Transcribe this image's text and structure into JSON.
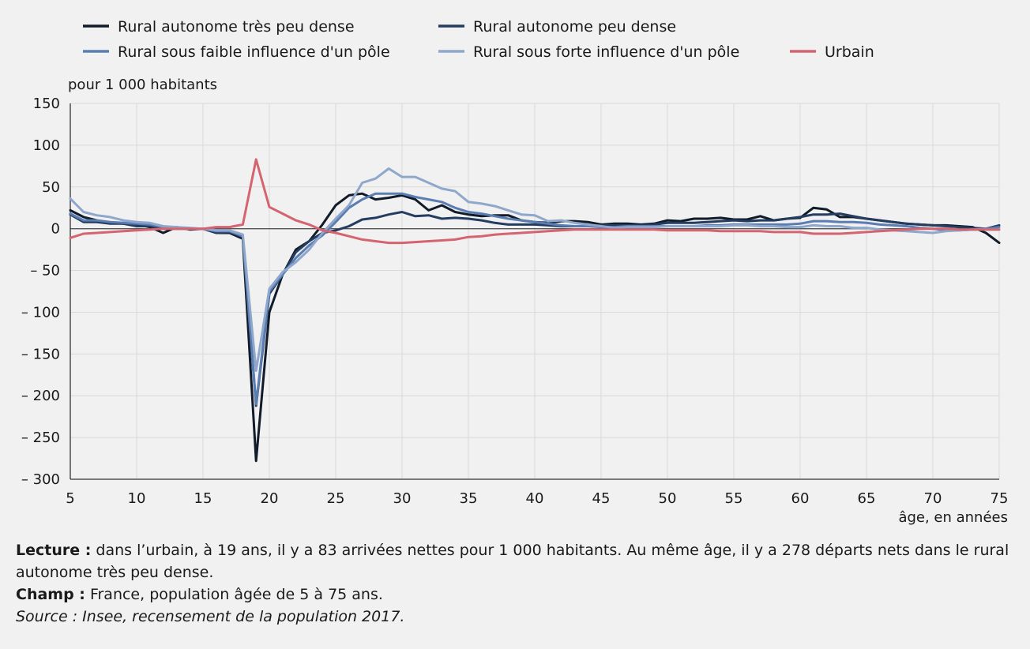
{
  "chart_data": {
    "type": "line",
    "ylabel": "pour 1 000 habitants",
    "xlabel": "âge, en années",
    "xlim": [
      5,
      75
    ],
    "ylim": [
      -300,
      150
    ],
    "x_ticks": [
      5,
      10,
      15,
      20,
      25,
      30,
      35,
      40,
      45,
      50,
      55,
      60,
      65,
      70,
      75
    ],
    "y_ticks": [
      {
        "value": 150,
        "label": "150"
      },
      {
        "value": 100,
        "label": "100"
      },
      {
        "value": 50,
        "label": "50"
      },
      {
        "value": 0,
        "label": "0"
      },
      {
        "value": -50,
        "label": "– 50"
      },
      {
        "value": -100,
        "label": "– 100"
      },
      {
        "value": -150,
        "label": "– 150"
      },
      {
        "value": -200,
        "label": "– 200"
      },
      {
        "value": -250,
        "label": "– 250"
      },
      {
        "value": -300,
        "label": "– 300"
      }
    ],
    "grid": true,
    "legend_position": "top",
    "x": [
      5,
      6,
      7,
      8,
      9,
      10,
      11,
      12,
      13,
      14,
      15,
      16,
      17,
      18,
      19,
      20,
      21,
      22,
      23,
      24,
      25,
      26,
      27,
      28,
      29,
      30,
      31,
      32,
      33,
      34,
      35,
      36,
      37,
      38,
      39,
      40,
      41,
      42,
      43,
      44,
      45,
      46,
      47,
      48,
      49,
      50,
      51,
      52,
      53,
      54,
      55,
      56,
      57,
      58,
      59,
      60,
      61,
      62,
      63,
      64,
      65,
      66,
      67,
      68,
      69,
      70,
      71,
      72,
      73,
      74,
      75
    ],
    "series": [
      {
        "name": "Rural autonome très  peu dense",
        "color": "#111b29",
        "values": [
          22,
          14,
          10,
          7,
          6,
          5,
          2,
          -5,
          2,
          -1,
          0,
          -5,
          -5,
          -12,
          -278,
          -100,
          -55,
          -25,
          -15,
          5,
          28,
          40,
          42,
          35,
          37,
          40,
          35,
          22,
          28,
          20,
          17,
          15,
          16,
          16,
          10,
          8,
          7,
          9,
          9,
          8,
          5,
          6,
          6,
          5,
          6,
          10,
          9,
          12,
          12,
          13,
          11,
          11,
          15,
          10,
          12,
          13,
          25,
          23,
          14,
          14,
          12,
          10,
          8,
          6,
          5,
          4,
          4,
          3,
          2,
          -5,
          -17
        ]
      },
      {
        "name": "Rural autonome peu dense",
        "color": "#253c61",
        "values": [
          17,
          8,
          8,
          6,
          6,
          3,
          3,
          0,
          0,
          0,
          0,
          -5,
          -4,
          -10,
          -212,
          -78,
          -55,
          -28,
          -15,
          -5,
          -2,
          3,
          11,
          13,
          17,
          20,
          15,
          16,
          12,
          13,
          12,
          10,
          7,
          5,
          5,
          5,
          4,
          3,
          3,
          3,
          4,
          4,
          4,
          4,
          5,
          7,
          7,
          7,
          8,
          9,
          10,
          9,
          10,
          10,
          12,
          14,
          17,
          17,
          18,
          15,
          12,
          10,
          8,
          6,
          5,
          4,
          3,
          2,
          1,
          0,
          4
        ]
      },
      {
        "name": "Rural sous faible influence d'un pôle",
        "color": "#5a7db2",
        "values": [
          18,
          10,
          10,
          8,
          7,
          6,
          5,
          2,
          1,
          0,
          0,
          -3,
          -3,
          -9,
          -210,
          -75,
          -55,
          -35,
          -20,
          -8,
          8,
          25,
          35,
          42,
          42,
          42,
          38,
          35,
          32,
          25,
          20,
          18,
          15,
          12,
          10,
          8,
          6,
          4,
          3,
          3,
          2,
          2,
          3,
          3,
          3,
          3,
          3,
          3,
          4,
          4,
          5,
          5,
          5,
          5,
          5,
          6,
          9,
          9,
          8,
          8,
          7,
          5,
          4,
          3,
          1,
          0,
          -2,
          -2,
          -1,
          0,
          2
        ]
      },
      {
        "name": "Rural sous forte influence d'un pôle",
        "color": "#8ea7cb",
        "values": [
          36,
          20,
          16,
          14,
          10,
          8,
          7,
          3,
          2,
          1,
          0,
          -2,
          -2,
          -7,
          -170,
          -72,
          -52,
          -40,
          -25,
          -5,
          12,
          28,
          55,
          60,
          72,
          62,
          62,
          55,
          48,
          45,
          32,
          30,
          27,
          22,
          17,
          16,
          9,
          10,
          7,
          5,
          3,
          1,
          2,
          2,
          2,
          3,
          3,
          3,
          3,
          3,
          4,
          4,
          3,
          3,
          2,
          2,
          4,
          3,
          3,
          1,
          1,
          -1,
          -2,
          -3,
          -4,
          -5,
          -3,
          -2,
          -1,
          -1,
          -1
        ]
      },
      {
        "name": "Urbain",
        "color": "#d4646f",
        "values": [
          -11,
          -6,
          -5,
          -4,
          -3,
          -2,
          -1,
          0,
          0,
          0,
          0,
          2,
          2,
          5,
          83,
          26,
          18,
          10,
          5,
          -2,
          -5,
          -9,
          -13,
          -15,
          -17,
          -17,
          -16,
          -15,
          -14,
          -13,
          -10,
          -9,
          -7,
          -6,
          -5,
          -4,
          -3,
          -2,
          -1,
          -1,
          -1,
          -1,
          -1,
          -1,
          -1,
          -2,
          -2,
          -2,
          -2,
          -3,
          -3,
          -3,
          -3,
          -4,
          -4,
          -4,
          -6,
          -6,
          -6,
          -5,
          -4,
          -3,
          -2,
          -1,
          0,
          0,
          0,
          -1,
          -1,
          -1,
          -1
        ]
      }
    ]
  },
  "notes": {
    "lecture_label": "Lecture :",
    "lecture_text": " dans l’urbain, à 19 ans, il y a 83 arrivées nettes pour 1 000 habitants. Au même âge, il y a 278 départs nets dans le rural autonome très peu dense.",
    "champ_label": "Champ :",
    "champ_text": " France, population âgée de 5 à 75 ans.",
    "source": "Source : Insee, recensement de la population 2017."
  }
}
